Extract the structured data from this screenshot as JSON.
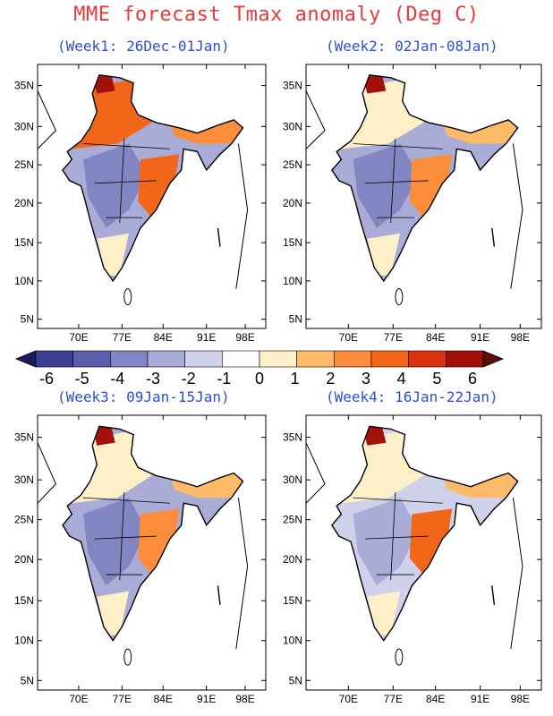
{
  "title": "MME forecast Tmax anomaly (Deg C)",
  "panels": [
    {
      "label": "(Week1: 26Dec-01Jan)"
    },
    {
      "label": "(Week2: 02Jan-08Jan)"
    },
    {
      "label": "(Week3: 09Jan-15Jan)"
    },
    {
      "label": "(Week4: 16Jan-22Jan)"
    }
  ],
  "lat_labels": [
    "35N",
    "30N",
    "25N",
    "20N",
    "15N",
    "10N",
    "5N"
  ],
  "lon_labels": [
    "70E",
    "77E",
    "84E",
    "91E",
    "98E"
  ],
  "colorbar": {
    "labels": [
      "-6",
      "-5",
      "-4",
      "-3",
      "-2",
      "-1",
      "0",
      "1",
      "2",
      "3",
      "4",
      "5",
      "6"
    ],
    "colors": [
      "#1b1c5e",
      "#3b3f8f",
      "#5b60aa",
      "#8185c1",
      "#a9acd6",
      "#cfd1eb",
      "#ffffff",
      "#fdf0c8",
      "#fdbb6a",
      "#fc8d3a",
      "#f2661a",
      "#d83212",
      "#a4100c",
      "#5e0a08"
    ]
  }
}
